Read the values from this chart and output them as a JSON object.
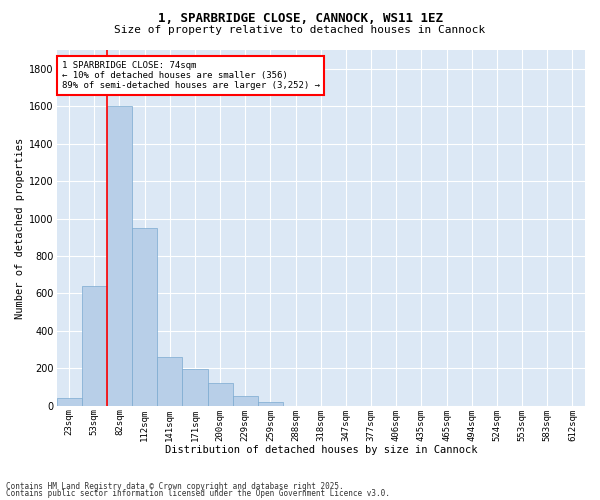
{
  "title1": "1, SPARBRIDGE CLOSE, CANNOCK, WS11 1EZ",
  "title2": "Size of property relative to detached houses in Cannock",
  "xlabel": "Distribution of detached houses by size in Cannock",
  "ylabel": "Number of detached properties",
  "categories": [
    "23sqm",
    "53sqm",
    "82sqm",
    "112sqm",
    "141sqm",
    "171sqm",
    "200sqm",
    "229sqm",
    "259sqm",
    "288sqm",
    "318sqm",
    "347sqm",
    "377sqm",
    "406sqm",
    "435sqm",
    "465sqm",
    "494sqm",
    "524sqm",
    "553sqm",
    "583sqm",
    "612sqm"
  ],
  "values": [
    40,
    640,
    1600,
    950,
    260,
    195,
    120,
    50,
    20,
    0,
    0,
    0,
    0,
    0,
    0,
    0,
    0,
    0,
    0,
    0,
    0
  ],
  "bar_color": "#b8cfe8",
  "bar_edge_color": "#7aaad0",
  "annotation_property": "1 SPARBRIDGE CLOSE: 74sqm",
  "annotation_line1": "← 10% of detached houses are smaller (356)",
  "annotation_line2": "89% of semi-detached houses are larger (3,252) →",
  "ylim": [
    0,
    1900
  ],
  "yticks": [
    0,
    200,
    400,
    600,
    800,
    1000,
    1200,
    1400,
    1600,
    1800
  ],
  "background_color": "#dce8f5",
  "grid_color": "white",
  "footnote1": "Contains HM Land Registry data © Crown copyright and database right 2025.",
  "footnote2": "Contains public sector information licensed under the Open Government Licence v3.0."
}
